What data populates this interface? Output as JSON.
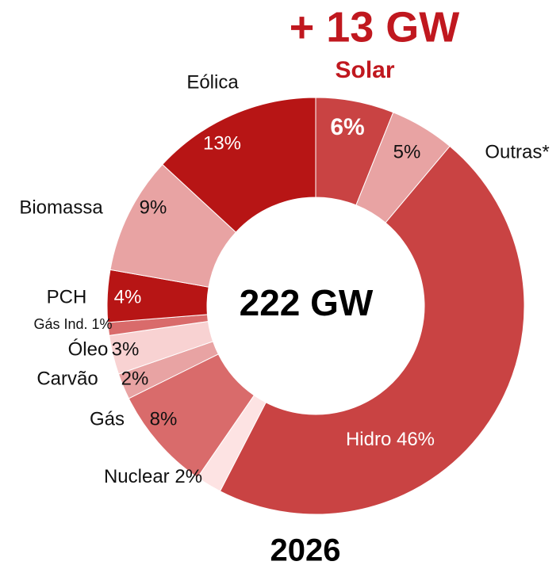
{
  "chart_data": {
    "type": "donut",
    "annotation": "+ 13 GW",
    "center_label": "222 GW",
    "title": "2026",
    "categories": [
      "Solar",
      "Outras*",
      "Hidro",
      "Nuclear",
      "Gás",
      "Carvão",
      "Óleo",
      "Gás Ind.",
      "PCH",
      "Biomassa",
      "Eólica"
    ],
    "values": [
      6,
      5,
      46,
      2,
      8,
      2,
      3,
      1,
      4,
      9,
      13
    ],
    "value_labels": [
      "6%",
      "5%",
      "46%",
      "2%",
      "8%",
      "2%",
      "3%",
      "1%",
      "4%",
      "9%",
      "13%"
    ],
    "colors": [
      "#c94343",
      "#e8a3a3",
      "#c94343",
      "#fde3e3",
      "#d96b6b",
      "#e8a3a3",
      "#f8d2d2",
      "#d96b6b",
      "#b71515",
      "#e8a3a3",
      "#b71515"
    ]
  }
}
